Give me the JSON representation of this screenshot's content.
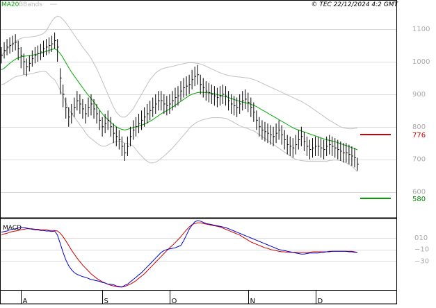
{
  "header": {
    "legend_ma": "MA20",
    "legend_bbands": "BBands",
    "copyright": "© TEC 22/12/2024 4:2 GMT"
  },
  "colors": {
    "bar": "#000000",
    "ma20": "#00aa00",
    "bbands": "#c0c0c0",
    "resistance": "#cc0000",
    "support": "#008800",
    "macd_line": "#0000cc",
    "signal_line": "#cc0000",
    "grid": "#dcdcdc",
    "frame": "#000000"
  },
  "chart_data": [
    {
      "type": "ohlc",
      "panel": "price",
      "ylim": [
        520,
        1160
      ],
      "yticks": [
        600,
        700,
        800,
        900,
        1000,
        1100
      ],
      "ytick_labels": [
        "600",
        "700",
        "800",
        "900",
        "1000",
        "1100"
      ],
      "grid": true,
      "x_labels": [
        "A",
        "S",
        "O",
        "N",
        "D"
      ],
      "x_label_index": [
        7,
        36,
        60,
        88,
        112
      ],
      "n_bars": 128,
      "close": [
        1020,
        1035,
        1045,
        1050,
        1055,
        1060,
        1040,
        1020,
        1000,
        985,
        995,
        1010,
        1020,
        1025,
        1030,
        1040,
        1045,
        1050,
        1055,
        1065,
        1045,
        950,
        900,
        860,
        830,
        840,
        860,
        880,
        870,
        855,
        840,
        860,
        870,
        855,
        840,
        820,
        800,
        810,
        820,
        800,
        780,
        770,
        760,
        740,
        720,
        740,
        770,
        790,
        800,
        810,
        820,
        830,
        840,
        850,
        860,
        870,
        880,
        880,
        870,
        865,
        870,
        880,
        890,
        895,
        910,
        920,
        925,
        930,
        945,
        955,
        960,
        930,
        920,
        910,
        905,
        900,
        895,
        890,
        895,
        900,
        895,
        880,
        870,
        865,
        860,
        870,
        880,
        885,
        875,
        860,
        845,
        820,
        800,
        790,
        785,
        780,
        775,
        770,
        780,
        790,
        775,
        760,
        745,
        740,
        735,
        745,
        760,
        770,
        755,
        740,
        730,
        735,
        740,
        740,
        735,
        730,
        740,
        745,
        740,
        735,
        730,
        725,
        720,
        720,
        715,
        710,
        705,
        685
      ],
      "range_low": [
        995,
        1010,
        1020,
        1025,
        1030,
        1035,
        1005,
        980,
        960,
        955,
        970,
        985,
        995,
        1000,
        1005,
        1015,
        1020,
        1025,
        1030,
        1040,
        1000,
        900,
        860,
        825,
        800,
        810,
        830,
        850,
        840,
        825,
        810,
        830,
        835,
        825,
        810,
        790,
        770,
        780,
        790,
        770,
        750,
        740,
        730,
        710,
        695,
        710,
        740,
        760,
        770,
        780,
        790,
        800,
        810,
        820,
        830,
        840,
        850,
        850,
        840,
        835,
        840,
        850,
        860,
        865,
        880,
        890,
        895,
        900,
        915,
        925,
        930,
        900,
        890,
        880,
        875,
        870,
        865,
        860,
        865,
        870,
        865,
        850,
        840,
        835,
        830,
        840,
        850,
        855,
        845,
        830,
        815,
        790,
        770,
        760,
        755,
        750,
        745,
        740,
        750,
        760,
        745,
        730,
        715,
        710,
        705,
        715,
        730,
        740,
        725,
        710,
        700,
        705,
        710,
        710,
        705,
        700,
        710,
        715,
        710,
        705,
        700,
        695,
        690,
        690,
        685,
        680,
        675,
        665
      ],
      "range_high": [
        1045,
        1060,
        1070,
        1075,
        1080,
        1085,
        1065,
        1045,
        1025,
        1010,
        1020,
        1035,
        1045,
        1050,
        1055,
        1065,
        1070,
        1075,
        1080,
        1090,
        1070,
        980,
        930,
        890,
        860,
        870,
        890,
        910,
        900,
        885,
        870,
        890,
        900,
        885,
        870,
        850,
        830,
        840,
        850,
        830,
        810,
        800,
        790,
        770,
        750,
        770,
        800,
        820,
        830,
        840,
        850,
        860,
        870,
        880,
        890,
        900,
        910,
        910,
        900,
        895,
        900,
        910,
        920,
        925,
        940,
        950,
        955,
        960,
        975,
        985,
        990,
        960,
        950,
        940,
        935,
        930,
        925,
        920,
        925,
        930,
        925,
        910,
        900,
        895,
        890,
        900,
        910,
        915,
        905,
        890,
        875,
        850,
        830,
        820,
        815,
        810,
        805,
        800,
        810,
        820,
        805,
        790,
        775,
        770,
        765,
        775,
        790,
        800,
        785,
        770,
        760,
        765,
        770,
        770,
        765,
        760,
        770,
        775,
        770,
        765,
        760,
        755,
        750,
        750,
        745,
        740,
        735,
        705
      ],
      "ma20": [
        975,
        980,
        988,
        995,
        1002,
        1008,
        1012,
        1015,
        1017,
        1018,
        1019,
        1020,
        1022,
        1024,
        1026,
        1029,
        1032,
        1035,
        1038,
        1040,
        1035,
        1025,
        1012,
        997,
        982,
        968,
        956,
        944,
        932,
        920,
        908,
        897,
        887,
        876,
        864,
        852,
        840,
        830,
        822,
        814,
        806,
        800,
        795,
        792,
        790,
        792,
        795,
        798,
        800,
        802,
        805,
        808,
        812,
        817,
        822,
        828,
        834,
        840,
        845,
        850,
        855,
        860,
        866,
        872,
        878,
        884,
        890,
        896,
        900,
        903,
        905,
        906,
        906,
        905,
        904,
        903,
        901,
        899,
        897,
        895,
        893,
        890,
        887,
        884,
        881,
        878,
        876,
        874,
        872,
        869,
        866,
        862,
        857,
        852,
        847,
        842,
        837,
        832,
        827,
        822,
        817,
        812,
        807,
        802,
        797,
        793,
        790,
        787,
        784,
        781,
        778,
        775,
        772,
        769,
        766,
        763,
        760,
        758,
        756,
        754,
        751,
        748,
        745,
        742,
        739,
        736,
        733,
        729
      ],
      "bb_upper": [
        1020,
        1028,
        1038,
        1047,
        1055,
        1062,
        1068,
        1072,
        1074,
        1075,
        1076,
        1077,
        1078,
        1080,
        1083,
        1087,
        1095,
        1110,
        1125,
        1135,
        1140,
        1138,
        1130,
        1120,
        1108,
        1095,
        1082,
        1070,
        1058,
        1045,
        1034,
        1023,
        1010,
        995,
        978,
        960,
        940,
        920,
        900,
        880,
        860,
        845,
        835,
        830,
        830,
        835,
        845,
        855,
        870,
        885,
        900,
        915,
        930,
        945,
        955,
        965,
        972,
        977,
        980,
        982,
        984,
        986,
        988,
        990,
        992,
        994,
        996,
        997,
        997,
        996,
        995,
        993,
        990,
        986,
        982,
        978,
        974,
        970,
        966,
        963,
        960,
        958,
        956,
        955,
        954,
        953,
        952,
        951,
        950,
        948,
        945,
        942,
        938,
        934,
        930,
        926,
        922,
        918,
        914,
        910,
        906,
        902,
        898,
        894,
        890,
        886,
        882,
        878,
        873,
        868,
        862,
        856,
        850,
        844,
        838,
        832,
        826,
        820,
        815,
        810,
        805,
        800,
        797,
        795,
        794,
        794,
        795,
        797
      ],
      "bb_lower": [
        930,
        932,
        938,
        943,
        949,
        954,
        956,
        958,
        960,
        961,
        962,
        963,
        966,
        968,
        969,
        971,
        969,
        960,
        951,
        945,
        930,
        912,
        894,
        874,
        856,
        841,
        830,
        818,
        806,
        795,
        782,
        771,
        764,
        757,
        750,
        744,
        740,
        740,
        744,
        748,
        752,
        755,
        755,
        754,
        750,
        749,
        745,
        741,
        730,
        719,
        710,
        701,
        694,
        689,
        689,
        691,
        696,
        703,
        710,
        718,
        726,
        734,
        744,
        754,
        764,
        774,
        784,
        795,
        803,
        810,
        815,
        819,
        822,
        824,
        826,
        828,
        828,
        828,
        828,
        827,
        826,
        822,
        818,
        813,
        808,
        803,
        800,
        797,
        794,
        790,
        787,
        782,
        776,
        770,
        764,
        758,
        752,
        746,
        740,
        734,
        728,
        722,
        716,
        710,
        704,
        700,
        698,
        696,
        695,
        694,
        694,
        694,
        694,
        694,
        694,
        694,
        694,
        696,
        697,
        698,
        697,
        696,
        693,
        689,
        684,
        678,
        671,
        661
      ],
      "levels": [
        {
          "label": "776",
          "value": 776,
          "kind": "resistance"
        },
        {
          "label": "580",
          "value": 580,
          "kind": "support"
        }
      ]
    },
    {
      "type": "line",
      "panel": "macd",
      "title": "MACD",
      "ylim": [
        -80,
        40
      ],
      "yticks": [
        10,
        -10,
        -30
      ],
      "ytick_labels": [
        "010",
        "−10",
        "−30"
      ],
      "grid": true,
      "series": [
        {
          "name": "MACD",
          "role": "macd",
          "values": [
            20,
            21,
            22,
            24,
            25,
            26,
            27,
            28,
            28,
            27,
            26,
            25,
            24,
            24,
            23,
            23,
            22,
            22,
            21,
            22,
            15,
            0,
            -15,
            -28,
            -38,
            -45,
            -50,
            -53,
            -55,
            -57,
            -58,
            -60,
            -62,
            -63,
            -64,
            -65,
            -67,
            -68,
            -70,
            -70,
            -71,
            -73,
            -74,
            -75,
            -72,
            -70,
            -66,
            -62,
            -58,
            -54,
            -50,
            -45,
            -40,
            -35,
            -30,
            -25,
            -20,
            -15,
            -12,
            -10,
            -9,
            -8,
            -7,
            -5,
            -3,
            5,
            15,
            25,
            32,
            38,
            40,
            39,
            37,
            35,
            34,
            33,
            32,
            31,
            30,
            29,
            28,
            26,
            24,
            22,
            20,
            18,
            16,
            14,
            12,
            10,
            8,
            6,
            4,
            2,
            0,
            -2,
            -4,
            -6,
            -8,
            -10,
            -11,
            -12,
            -13,
            -14,
            -15,
            -16,
            -17,
            -18,
            -18,
            -17,
            -16,
            -16,
            -16,
            -16,
            -15,
            -15,
            -14,
            -14,
            -13,
            -13,
            -13,
            -13,
            -13,
            -13,
            -14,
            -14,
            -15,
            -15
          ]
        },
        {
          "name": "Signal",
          "role": "signal",
          "values": [
            15,
            17,
            18,
            20,
            21,
            22,
            23,
            24,
            25,
            26,
            26,
            26,
            25,
            25,
            24,
            24,
            24,
            23,
            23,
            23,
            22,
            18,
            12,
            5,
            -3,
            -11,
            -18,
            -25,
            -31,
            -37,
            -42,
            -47,
            -52,
            -56,
            -60,
            -63,
            -66,
            -68,
            -70,
            -72,
            -73,
            -74,
            -75,
            -75,
            -74,
            -72,
            -70,
            -67,
            -64,
            -60,
            -56,
            -52,
            -47,
            -42,
            -37,
            -32,
            -27,
            -22,
            -17,
            -12,
            -7,
            -3,
            2,
            7,
            12,
            18,
            24,
            29,
            33,
            35,
            36,
            36,
            35,
            34,
            33,
            32,
            31,
            30,
            29,
            27,
            25,
            23,
            21,
            19,
            17,
            15,
            12,
            9,
            6,
            3,
            1,
            -1,
            -3,
            -5,
            -7,
            -8,
            -10,
            -11,
            -12,
            -13,
            -14,
            -14,
            -15,
            -15,
            -15,
            -15,
            -15,
            -15,
            -15,
            -15,
            -15,
            -14,
            -14,
            -14,
            -14,
            -14,
            -14,
            -13,
            -13,
            -13,
            -13,
            -13,
            -13,
            -13,
            -13,
            -13,
            -14,
            -15
          ]
        }
      ]
    }
  ]
}
